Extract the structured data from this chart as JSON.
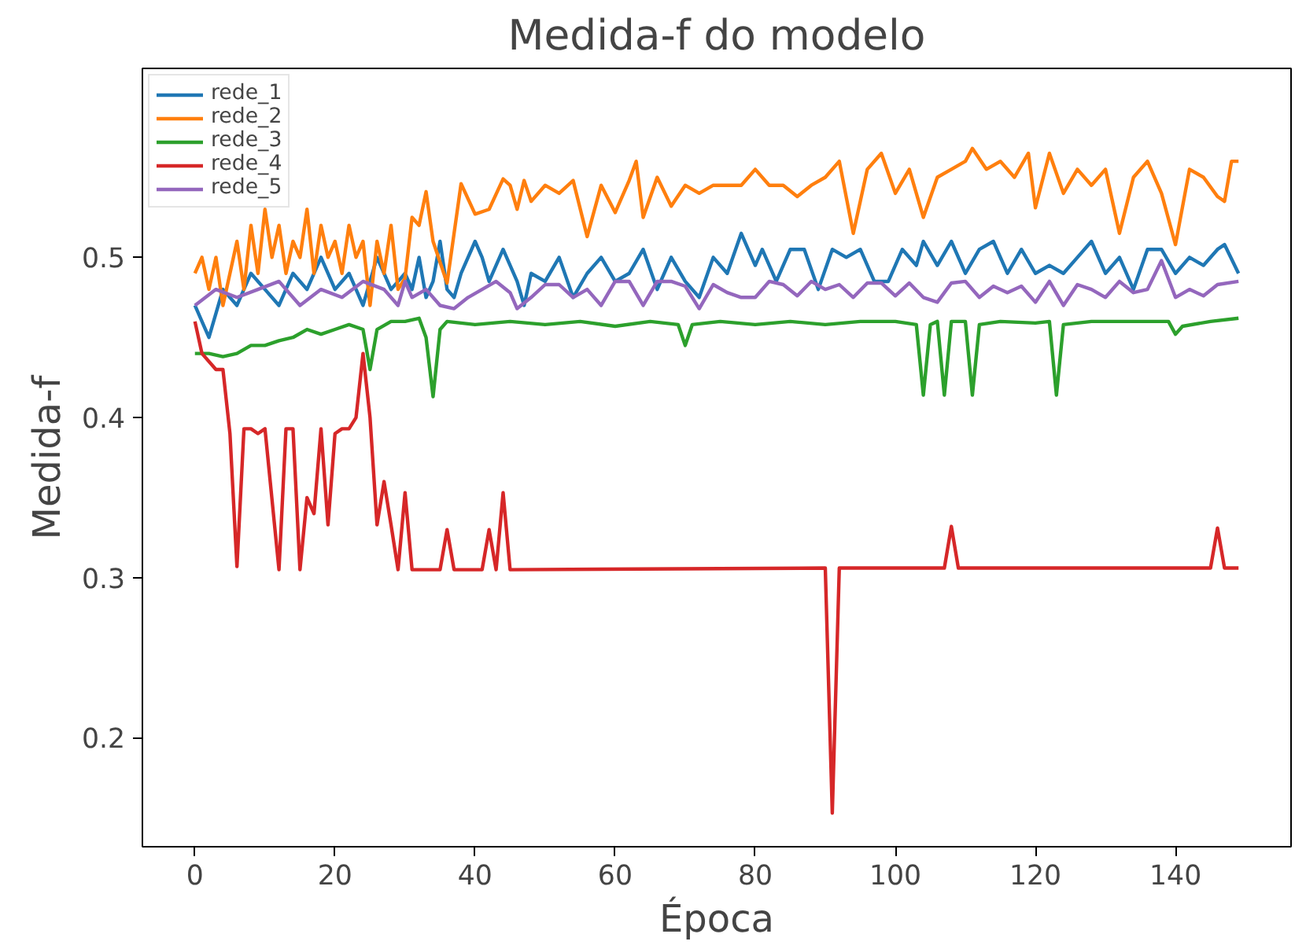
{
  "chart_data": {
    "type": "line",
    "title": "Medida-f do modelo",
    "xlabel": "Época",
    "ylabel": "Medida-f",
    "xlim": [
      -7.5,
      156.5
    ],
    "ylim": [
      0.132,
      0.618
    ],
    "xticks": [
      0,
      20,
      40,
      60,
      80,
      100,
      120,
      140
    ],
    "yticks": [
      0.2,
      0.3,
      0.4,
      0.5
    ],
    "grid": false,
    "legend": "top left",
    "marker": "none",
    "line_style": "solid",
    "series": [
      {
        "name": "rede_1",
        "color": "#1f77b4",
        "x": [
          0,
          2,
          4,
          6,
          8,
          10,
          12,
          14,
          16,
          18,
          20,
          22,
          24,
          26,
          28,
          30,
          31,
          32,
          33,
          34,
          35,
          36,
          37,
          38,
          40,
          41,
          42,
          44,
          46,
          47,
          48,
          50,
          52,
          54,
          56,
          58,
          60,
          62,
          64,
          66,
          68,
          70,
          72,
          74,
          76,
          78,
          80,
          81,
          83,
          85,
          87,
          89,
          91,
          93,
          95,
          97,
          99,
          101,
          103,
          104,
          106,
          108,
          110,
          112,
          114,
          116,
          118,
          120,
          122,
          124,
          126,
          128,
          130,
          132,
          134,
          136,
          138,
          140,
          142,
          144,
          146,
          147,
          149
        ],
        "values": [
          0.47,
          0.45,
          0.48,
          0.47,
          0.49,
          0.48,
          0.47,
          0.49,
          0.48,
          0.5,
          0.48,
          0.49,
          0.47,
          0.5,
          0.48,
          0.49,
          0.48,
          0.5,
          0.475,
          0.485,
          0.51,
          0.48,
          0.475,
          0.49,
          0.51,
          0.5,
          0.485,
          0.505,
          0.485,
          0.47,
          0.49,
          0.485,
          0.5,
          0.475,
          0.49,
          0.5,
          0.485,
          0.49,
          0.505,
          0.48,
          0.5,
          0.485,
          0.475,
          0.5,
          0.49,
          0.515,
          0.495,
          0.505,
          0.485,
          0.505,
          0.505,
          0.48,
          0.505,
          0.5,
          0.505,
          0.485,
          0.485,
          0.505,
          0.495,
          0.51,
          0.495,
          0.51,
          0.49,
          0.505,
          0.51,
          0.49,
          0.505,
          0.49,
          0.495,
          0.49,
          0.5,
          0.51,
          0.49,
          0.5,
          0.48,
          0.505,
          0.505,
          0.49,
          0.5,
          0.495,
          0.505,
          0.508,
          0.49
        ]
      },
      {
        "name": "rede_2",
        "color": "#ff7f0e",
        "x": [
          0,
          1,
          2,
          3,
          4,
          5,
          6,
          7,
          8,
          9,
          10,
          11,
          12,
          13,
          14,
          15,
          16,
          17,
          18,
          19,
          20,
          21,
          22,
          23,
          24,
          25,
          26,
          27,
          28,
          29,
          30,
          31,
          32,
          33,
          34,
          36,
          38,
          40,
          42,
          44,
          45,
          46,
          47,
          48,
          50,
          52,
          54,
          56,
          58,
          60,
          62,
          63,
          64,
          66,
          68,
          70,
          72,
          74,
          76,
          78,
          80,
          82,
          84,
          86,
          88,
          90,
          92,
          94,
          96,
          98,
          100,
          102,
          104,
          106,
          108,
          110,
          111,
          113,
          115,
          117,
          119,
          120,
          122,
          124,
          126,
          128,
          130,
          132,
          134,
          136,
          138,
          140,
          142,
          144,
          146,
          147,
          148,
          149
        ],
        "values": [
          0.49,
          0.5,
          0.48,
          0.5,
          0.47,
          0.49,
          0.51,
          0.48,
          0.52,
          0.49,
          0.53,
          0.5,
          0.52,
          0.49,
          0.51,
          0.5,
          0.53,
          0.49,
          0.52,
          0.5,
          0.51,
          0.49,
          0.52,
          0.5,
          0.51,
          0.47,
          0.51,
          0.49,
          0.52,
          0.48,
          0.487,
          0.525,
          0.52,
          0.541,
          0.51,
          0.484,
          0.546,
          0.527,
          0.53,
          0.549,
          0.545,
          0.53,
          0.548,
          0.535,
          0.545,
          0.54,
          0.548,
          0.513,
          0.545,
          0.528,
          0.548,
          0.56,
          0.525,
          0.55,
          0.532,
          0.545,
          0.54,
          0.545,
          0.545,
          0.545,
          0.555,
          0.545,
          0.545,
          0.538,
          0.545,
          0.55,
          0.56,
          0.515,
          0.555,
          0.565,
          0.54,
          0.555,
          0.525,
          0.55,
          0.555,
          0.56,
          0.568,
          0.555,
          0.56,
          0.55,
          0.565,
          0.531,
          0.565,
          0.54,
          0.555,
          0.545,
          0.555,
          0.515,
          0.55,
          0.56,
          0.54,
          0.508,
          0.555,
          0.55,
          0.538,
          0.535,
          0.56,
          0.56
        ]
      },
      {
        "name": "rede_3",
        "color": "#2ca02c",
        "x": [
          0,
          2,
          4,
          6,
          8,
          10,
          12,
          14,
          16,
          18,
          20,
          22,
          24,
          25,
          26,
          28,
          30,
          32,
          33,
          34,
          35,
          36,
          40,
          45,
          50,
          55,
          60,
          65,
          69,
          70,
          71,
          75,
          80,
          85,
          90,
          95,
          100,
          103,
          104,
          105,
          106,
          107,
          108,
          110,
          111,
          112,
          115,
          120,
          122,
          123,
          124,
          128,
          135,
          139,
          140,
          141,
          145,
          149
        ],
        "values": [
          0.44,
          0.44,
          0.438,
          0.44,
          0.445,
          0.445,
          0.448,
          0.45,
          0.455,
          0.452,
          0.455,
          0.458,
          0.455,
          0.43,
          0.455,
          0.46,
          0.46,
          0.462,
          0.45,
          0.413,
          0.455,
          0.46,
          0.458,
          0.46,
          0.458,
          0.46,
          0.457,
          0.46,
          0.458,
          0.445,
          0.458,
          0.46,
          0.458,
          0.46,
          0.458,
          0.46,
          0.46,
          0.458,
          0.414,
          0.458,
          0.46,
          0.414,
          0.46,
          0.46,
          0.414,
          0.458,
          0.46,
          0.459,
          0.46,
          0.414,
          0.458,
          0.46,
          0.46,
          0.46,
          0.452,
          0.457,
          0.46,
          0.462
        ]
      },
      {
        "name": "rede_4",
        "color": "#d62728",
        "x": [
          0,
          1,
          3,
          4,
          5,
          6,
          7,
          8,
          9,
          10,
          12,
          13,
          14,
          15,
          16,
          17,
          18,
          19,
          20,
          21,
          22,
          23,
          24,
          25,
          26,
          27,
          28,
          29,
          30,
          31,
          35,
          36,
          37,
          41,
          42,
          43,
          44,
          45,
          90,
          91,
          92,
          107,
          108,
          109,
          145,
          146,
          147,
          149
        ],
        "values": [
          0.46,
          0.44,
          0.43,
          0.43,
          0.39,
          0.307,
          0.393,
          0.393,
          0.39,
          0.393,
          0.305,
          0.393,
          0.393,
          0.305,
          0.35,
          0.34,
          0.393,
          0.333,
          0.39,
          0.393,
          0.393,
          0.4,
          0.44,
          0.4,
          0.333,
          0.36,
          0.333,
          0.305,
          0.353,
          0.305,
          0.305,
          0.33,
          0.305,
          0.305,
          0.33,
          0.305,
          0.353,
          0.305,
          0.306,
          0.153,
          0.306,
          0.306,
          0.332,
          0.306,
          0.306,
          0.331,
          0.306,
          0.306
        ]
      },
      {
        "name": "rede_5",
        "color": "#9467bd",
        "x": [
          0,
          3,
          6,
          9,
          12,
          15,
          18,
          21,
          24,
          27,
          29,
          30,
          31,
          33,
          35,
          37,
          39,
          41,
          43,
          45,
          46,
          48,
          50,
          52,
          54,
          56,
          58,
          60,
          62,
          64,
          66,
          68,
          70,
          72,
          74,
          76,
          78,
          80,
          82,
          84,
          86,
          88,
          90,
          92,
          94,
          96,
          98,
          100,
          102,
          104,
          106,
          108,
          110,
          112,
          114,
          116,
          118,
          120,
          122,
          124,
          126,
          128,
          130,
          132,
          134,
          136,
          138,
          140,
          142,
          144,
          146,
          149
        ],
        "values": [
          0.47,
          0.48,
          0.475,
          0.48,
          0.485,
          0.47,
          0.48,
          0.475,
          0.485,
          0.48,
          0.47,
          0.485,
          0.475,
          0.48,
          0.47,
          0.468,
          0.475,
          0.48,
          0.485,
          0.478,
          0.468,
          0.475,
          0.483,
          0.483,
          0.475,
          0.48,
          0.47,
          0.485,
          0.485,
          0.47,
          0.485,
          0.485,
          0.482,
          0.468,
          0.483,
          0.478,
          0.475,
          0.475,
          0.485,
          0.483,
          0.476,
          0.485,
          0.48,
          0.483,
          0.475,
          0.484,
          0.484,
          0.476,
          0.484,
          0.475,
          0.472,
          0.484,
          0.485,
          0.475,
          0.482,
          0.478,
          0.482,
          0.472,
          0.485,
          0.47,
          0.483,
          0.48,
          0.475,
          0.485,
          0.478,
          0.48,
          0.498,
          0.475,
          0.48,
          0.476,
          0.483,
          0.485
        ]
      }
    ]
  }
}
